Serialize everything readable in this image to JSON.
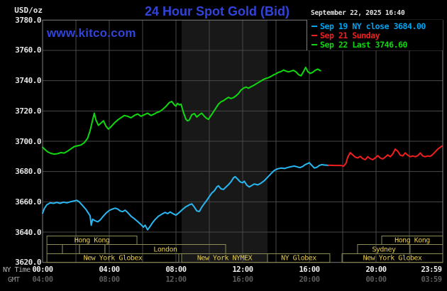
{
  "header": {
    "unit_label": "USD/oz",
    "title": "24 Hour Spot Gold (Bid)",
    "datetime": "September 22, 2025 16:40",
    "watermark": "www.kitco.com"
  },
  "legend": {
    "items": [
      {
        "label": "Sep 19 NY close 3684.00",
        "color": "#00a4f0"
      },
      {
        "label": "Sep 21 Sunday",
        "color": "#f02020"
      },
      {
        "label": "Sep 22 Last 3746.60",
        "color": "#12d412"
      }
    ]
  },
  "axes": {
    "y_tick_labels": [
      "3780.0",
      "3760.0",
      "3740.0",
      "3720.0",
      "3700.0",
      "3680.0",
      "3660.0",
      "3640.0",
      "3620.0"
    ],
    "x_row1_caption": "NY Time",
    "x_row2_caption": "GMT",
    "x_row1_ticks": [
      "00:00",
      "04:00",
      "08:00",
      "12:00",
      "16:00",
      "20:00",
      "23:59"
    ],
    "x_row2_ticks": [
      "04:00",
      "08:00",
      "12:00",
      "16:00",
      "20:00",
      "00:00",
      "03:59"
    ]
  },
  "sessions": {
    "rows": [
      [
        {
          "label": "Hong Kong",
          "from_h": 0.26,
          "to_h": 5.66
        },
        {
          "label": "Hong Kong",
          "from_h": 20.34,
          "to_h": 24
        }
      ],
      [
        {
          "label": "",
          "from_h": 0.26,
          "to_h": 1.19
        },
        {
          "label": "",
          "from_h": 1.19,
          "to_h": 2.21
        },
        {
          "label": "",
          "from_h": 2.21,
          "to_h": 3.74
        },
        {
          "label": "London",
          "from_h": 3.74,
          "to_h": 10.98
        },
        {
          "label": "Sydney",
          "from_h": 18.89,
          "to_h": 22.04
        }
      ],
      [
        {
          "label": "New York Globex",
          "from_h": 0.26,
          "to_h": 8.17
        },
        {
          "label": "New York NYMEX",
          "from_h": 8.34,
          "to_h": 13.49
        },
        {
          "label": "NY Globex",
          "from_h": 13.49,
          "to_h": 17.23
        },
        {
          "label": "New York Globex",
          "from_h": 17.96,
          "to_h": 24
        }
      ]
    ]
  },
  "colors": {
    "background": "#000000",
    "title_blue": "#3243d9",
    "grid": "#494949",
    "plot_border": "#7e7e7e",
    "shaded_band": "#181818",
    "session_border": "#8c8c59",
    "session_label": "#e5cb4f",
    "series_prev": "#29b7f2",
    "series_sunday": "#f01e1e",
    "series_today": "#10d710"
  },
  "chart_data": {
    "type": "line",
    "title": "24 Hour Spot Gold (Bid)",
    "xlabel": "NY Time (hours 00:00-23:59)",
    "ylabel": "USD/oz",
    "ylim": [
      3620,
      3780
    ],
    "xlim_hours": [
      0,
      24
    ],
    "y_gridline_step": 20,
    "x_gridline_step_hours": 2,
    "grid": true,
    "legend_position": "top-right",
    "shaded_region_hours": {
      "from_h": 8.34,
      "to_h": 13.49,
      "note": "New York NYMEX floor session"
    },
    "series": [
      {
        "name": "Sep 19 NY close 3684.00",
        "color": "#29b7f2",
        "points": [
          [
            0,
            3652.5
          ],
          [
            0.1,
            3655.5
          ],
          [
            0.25,
            3658
          ],
          [
            0.45,
            3659.3
          ],
          [
            0.65,
            3659
          ],
          [
            0.85,
            3659.6
          ],
          [
            1.05,
            3659
          ],
          [
            1.25,
            3659.8
          ],
          [
            1.45,
            3659.3
          ],
          [
            1.65,
            3660
          ],
          [
            1.85,
            3660.5
          ],
          [
            2.05,
            3661
          ],
          [
            2.2,
            3660
          ],
          [
            2.4,
            3657.5
          ],
          [
            2.6,
            3655
          ],
          [
            2.75,
            3652.5
          ],
          [
            2.85,
            3650.8
          ],
          [
            2.92,
            3644.5
          ],
          [
            3,
            3648.5
          ],
          [
            3.15,
            3647.5
          ],
          [
            3.3,
            3646.8
          ],
          [
            3.45,
            3648
          ],
          [
            3.6,
            3650
          ],
          [
            3.8,
            3652.5
          ],
          [
            4,
            3654.3
          ],
          [
            4.2,
            3655.3
          ],
          [
            4.35,
            3655.8
          ],
          [
            4.5,
            3655.3
          ],
          [
            4.65,
            3654
          ],
          [
            4.8,
            3653.5
          ],
          [
            4.95,
            3654.5
          ],
          [
            5.1,
            3653
          ],
          [
            5.3,
            3650.5
          ],
          [
            5.5,
            3648.8
          ],
          [
            5.7,
            3647
          ],
          [
            5.9,
            3645
          ],
          [
            6.05,
            3643.3
          ],
          [
            6.15,
            3644.6
          ],
          [
            6.3,
            3641.5
          ],
          [
            6.45,
            3643.8
          ],
          [
            6.6,
            3646.3
          ],
          [
            6.75,
            3648.3
          ],
          [
            6.95,
            3650.5
          ],
          [
            7.15,
            3651.8
          ],
          [
            7.35,
            3653
          ],
          [
            7.5,
            3652.2
          ],
          [
            7.65,
            3653.3
          ],
          [
            7.8,
            3652.3
          ],
          [
            8,
            3651.2
          ],
          [
            8.2,
            3653
          ],
          [
            8.4,
            3655
          ],
          [
            8.6,
            3656.8
          ],
          [
            8.8,
            3658
          ],
          [
            8.95,
            3658.6
          ],
          [
            9.1,
            3656.5
          ],
          [
            9.25,
            3654
          ],
          [
            9.4,
            3653.6
          ],
          [
            9.55,
            3656.5
          ],
          [
            9.7,
            3658.8
          ],
          [
            9.85,
            3661
          ],
          [
            10,
            3663.5
          ],
          [
            10.15,
            3665.8
          ],
          [
            10.3,
            3667.3
          ],
          [
            10.45,
            3669.8
          ],
          [
            10.55,
            3670.6
          ],
          [
            10.7,
            3668.6
          ],
          [
            10.85,
            3668.2
          ],
          [
            11,
            3669.8
          ],
          [
            11.15,
            3671.3
          ],
          [
            11.3,
            3673.3
          ],
          [
            11.45,
            3675.8
          ],
          [
            11.55,
            3676.6
          ],
          [
            11.7,
            3675
          ],
          [
            11.85,
            3673.2
          ],
          [
            12,
            3672.6
          ],
          [
            12.1,
            3673.6
          ],
          [
            12.25,
            3671
          ],
          [
            12.4,
            3669.8
          ],
          [
            12.55,
            3670.8
          ],
          [
            12.7,
            3671.8
          ],
          [
            12.9,
            3671.2
          ],
          [
            13.1,
            3672.3
          ],
          [
            13.3,
            3674
          ],
          [
            13.5,
            3676.3
          ],
          [
            13.7,
            3678.6
          ],
          [
            13.9,
            3680.8
          ],
          [
            14.1,
            3681.8
          ],
          [
            14.3,
            3682.3
          ],
          [
            14.5,
            3682
          ],
          [
            14.7,
            3682.6
          ],
          [
            14.9,
            3683.2
          ],
          [
            15.1,
            3683.6
          ],
          [
            15.3,
            3683
          ],
          [
            15.45,
            3682.6
          ],
          [
            15.6,
            3683.3
          ],
          [
            15.75,
            3684.6
          ],
          [
            15.9,
            3685.3
          ],
          [
            16,
            3685.8
          ],
          [
            16.15,
            3684
          ],
          [
            16.3,
            3682.3
          ],
          [
            16.45,
            3682.8
          ],
          [
            16.6,
            3684
          ],
          [
            16.75,
            3684.6
          ],
          [
            16.9,
            3684.3
          ],
          [
            17.05,
            3684.2
          ],
          [
            17.15,
            3684
          ]
        ]
      },
      {
        "name": "Sep 21 Sunday",
        "color": "#f01e1e",
        "points": [
          [
            17.15,
            3684.2
          ],
          [
            17.5,
            3684
          ],
          [
            17.9,
            3684
          ],
          [
            18.05,
            3683.5
          ],
          [
            18.2,
            3685.5
          ],
          [
            18.3,
            3689.5
          ],
          [
            18.45,
            3692.5
          ],
          [
            18.6,
            3691
          ],
          [
            18.75,
            3689.5
          ],
          [
            18.9,
            3689
          ],
          [
            19.05,
            3690
          ],
          [
            19.2,
            3688.5
          ],
          [
            19.35,
            3687.8
          ],
          [
            19.5,
            3689.8
          ],
          [
            19.65,
            3688.5
          ],
          [
            19.8,
            3687.8
          ],
          [
            19.95,
            3689
          ],
          [
            20.1,
            3690.5
          ],
          [
            20.25,
            3689
          ],
          [
            20.4,
            3688.3
          ],
          [
            20.55,
            3689.5
          ],
          [
            20.7,
            3691
          ],
          [
            20.85,
            3689.8
          ],
          [
            21,
            3691.5
          ],
          [
            21.15,
            3694.8
          ],
          [
            21.3,
            3693.5
          ],
          [
            21.45,
            3690.8
          ],
          [
            21.6,
            3690.3
          ],
          [
            21.75,
            3692.3
          ],
          [
            21.9,
            3690.8
          ],
          [
            22.05,
            3689.8
          ],
          [
            22.2,
            3690.3
          ],
          [
            22.35,
            3689.8
          ],
          [
            22.5,
            3690.5
          ],
          [
            22.65,
            3692.2
          ],
          [
            22.8,
            3690.3
          ],
          [
            22.95,
            3689.8
          ],
          [
            23.1,
            3690.3
          ],
          [
            23.25,
            3690
          ],
          [
            23.4,
            3691.3
          ],
          [
            23.55,
            3693
          ],
          [
            23.7,
            3694.8
          ],
          [
            23.85,
            3696
          ],
          [
            23.98,
            3697
          ]
        ]
      },
      {
        "name": "Sep 22 Last 3746.60",
        "color": "#10d710",
        "points": [
          [
            0,
            3696
          ],
          [
            0.15,
            3694.5
          ],
          [
            0.3,
            3693
          ],
          [
            0.5,
            3692
          ],
          [
            0.7,
            3691.5
          ],
          [
            0.9,
            3691.8
          ],
          [
            1.1,
            3692.5
          ],
          [
            1.3,
            3692.2
          ],
          [
            1.5,
            3693.5
          ],
          [
            1.7,
            3695
          ],
          [
            1.9,
            3696.5
          ],
          [
            2.1,
            3697
          ],
          [
            2.3,
            3697.5
          ],
          [
            2.5,
            3699
          ],
          [
            2.7,
            3702
          ],
          [
            2.85,
            3707
          ],
          [
            3,
            3714
          ],
          [
            3.1,
            3718.5
          ],
          [
            3.2,
            3714
          ],
          [
            3.35,
            3710.5
          ],
          [
            3.5,
            3712
          ],
          [
            3.65,
            3713.5
          ],
          [
            3.8,
            3710
          ],
          [
            3.95,
            3708
          ],
          [
            4.1,
            3709.5
          ],
          [
            4.3,
            3712
          ],
          [
            4.5,
            3714
          ],
          [
            4.7,
            3715.5
          ],
          [
            4.9,
            3717
          ],
          [
            5.1,
            3716.5
          ],
          [
            5.3,
            3715.5
          ],
          [
            5.5,
            3717
          ],
          [
            5.7,
            3718
          ],
          [
            5.9,
            3716.5
          ],
          [
            6.1,
            3717.5
          ],
          [
            6.3,
            3718.5
          ],
          [
            6.5,
            3717
          ],
          [
            6.7,
            3718
          ],
          [
            6.85,
            3719
          ],
          [
            7,
            3719.5
          ],
          [
            7.2,
            3721
          ],
          [
            7.4,
            3723
          ],
          [
            7.6,
            3725.5
          ],
          [
            7.75,
            3726.3
          ],
          [
            7.9,
            3724
          ],
          [
            8,
            3723.2
          ],
          [
            8.1,
            3725
          ],
          [
            8.2,
            3724
          ],
          [
            8.3,
            3724.5
          ],
          [
            8.45,
            3719
          ],
          [
            8.6,
            3714.5
          ],
          [
            8.7,
            3713.5
          ],
          [
            8.8,
            3714
          ],
          [
            8.95,
            3717.5
          ],
          [
            9.1,
            3718.3
          ],
          [
            9.25,
            3716
          ],
          [
            9.4,
            3717.5
          ],
          [
            9.55,
            3718.5
          ],
          [
            9.7,
            3716.5
          ],
          [
            9.85,
            3715
          ],
          [
            9.95,
            3714.5
          ],
          [
            10.1,
            3717
          ],
          [
            10.25,
            3719.5
          ],
          [
            10.4,
            3722
          ],
          [
            10.55,
            3724.5
          ],
          [
            10.7,
            3726
          ],
          [
            10.85,
            3726.8
          ],
          [
            11,
            3728
          ],
          [
            11.15,
            3729
          ],
          [
            11.3,
            3728.2
          ],
          [
            11.45,
            3728.8
          ],
          [
            11.6,
            3730
          ],
          [
            11.75,
            3731.5
          ],
          [
            11.9,
            3733.8
          ],
          [
            12.05,
            3735
          ],
          [
            12.2,
            3735.8
          ],
          [
            12.35,
            3735
          ],
          [
            12.5,
            3736
          ],
          [
            12.65,
            3736.8
          ],
          [
            12.8,
            3737.8
          ],
          [
            12.95,
            3738.8
          ],
          [
            13.1,
            3739.8
          ],
          [
            13.25,
            3740.8
          ],
          [
            13.4,
            3741.5
          ],
          [
            13.55,
            3742
          ],
          [
            13.7,
            3742.8
          ],
          [
            13.85,
            3743.8
          ],
          [
            14,
            3744.5
          ],
          [
            14.15,
            3745.5
          ],
          [
            14.3,
            3746
          ],
          [
            14.45,
            3747
          ],
          [
            14.6,
            3746.3
          ],
          [
            14.75,
            3745.8
          ],
          [
            14.9,
            3746.3
          ],
          [
            15.05,
            3746.8
          ],
          [
            15.2,
            3745.8
          ],
          [
            15.35,
            3744
          ],
          [
            15.5,
            3743.2
          ],
          [
            15.65,
            3746
          ],
          [
            15.78,
            3748.8
          ],
          [
            15.9,
            3746
          ],
          [
            16.05,
            3744.8
          ],
          [
            16.2,
            3745.5
          ],
          [
            16.35,
            3746.8
          ],
          [
            16.5,
            3747.6
          ],
          [
            16.67,
            3746.6
          ]
        ]
      }
    ]
  }
}
